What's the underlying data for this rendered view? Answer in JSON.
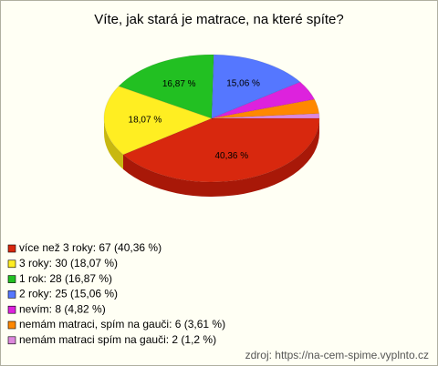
{
  "chart_data": {
    "type": "pie",
    "title": "Víte, jak stará je matrace, na které spíte?",
    "categories": [
      "více než 3 roky: 67 (40,36 %)",
      "3 roky: 30 (18,07 %)",
      "1 rok: 28 (16,87 %)",
      "2 roky: 25 (15,06 %)",
      "nevím: 8 (4,82 %)",
      "nemám matraci, spím na gauči: 6 (3,61 %)",
      "nemám matraci spím na gauči: 2 (1,2 %)"
    ],
    "values": [
      40.36,
      18.07,
      16.87,
      15.06,
      4.82,
      3.61,
      1.2
    ],
    "value_labels": [
      "40,36 %",
      "18,07 %",
      "16,87 %",
      "15,06 %",
      null,
      null,
      null
    ],
    "colors": [
      "#d8280e",
      "#ffee22",
      "#22c022",
      "#5577ff",
      "#dd22dd",
      "#ff8800",
      "#dd88dd"
    ],
    "side_colors": [
      "#a81808",
      "#c8b810",
      "#169016",
      "#3a55c8",
      "#a818a8",
      "#c86800",
      "#b068b0"
    ],
    "legend": "bottom-left",
    "source": "zdroj: https://na-cem-spime.vyplnto.cz"
  }
}
